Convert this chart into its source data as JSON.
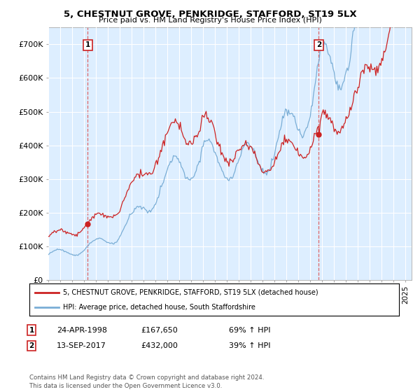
{
  "title": "5, CHESTNUT GROVE, PENKRIDGE, STAFFORD, ST19 5LX",
  "subtitle": "Price paid vs. HM Land Registry's House Price Index (HPI)",
  "hpi_label": "HPI: Average price, detached house, South Staffordshire",
  "property_label": "5, CHESTNUT GROVE, PENKRIDGE, STAFFORD, ST19 5LX (detached house)",
  "purchase1_date": "24-APR-1998",
  "purchase1_price": 167650,
  "purchase1_hpi_pct": "69% ↑ HPI",
  "purchase1_year": 1998.31,
  "purchase2_date": "13-SEP-2017",
  "purchase2_price": 432000,
  "purchase2_hpi_pct": "39% ↑ HPI",
  "purchase2_year": 2017.71,
  "hpi_color": "#7aaed6",
  "property_color": "#cc2222",
  "vline_color": "#dd4444",
  "background_color": "#ffffff",
  "chart_bg_color": "#ddeeff",
  "grid_color": "#ffffff",
  "annotation_box_color": "#cc2222",
  "ylim_min": 0,
  "ylim_max": 750000,
  "xlim_min": 1995.0,
  "xlim_max": 2025.5,
  "footer": "Contains HM Land Registry data © Crown copyright and database right 2024.\nThis data is licensed under the Open Government Licence v3.0.",
  "yticks": [
    0,
    100000,
    200000,
    300000,
    400000,
    500000,
    600000,
    700000
  ],
  "ytick_labels": [
    "£0",
    "£100K",
    "£200K",
    "£300K",
    "£400K",
    "£500K",
    "£600K",
    "£700K"
  ]
}
